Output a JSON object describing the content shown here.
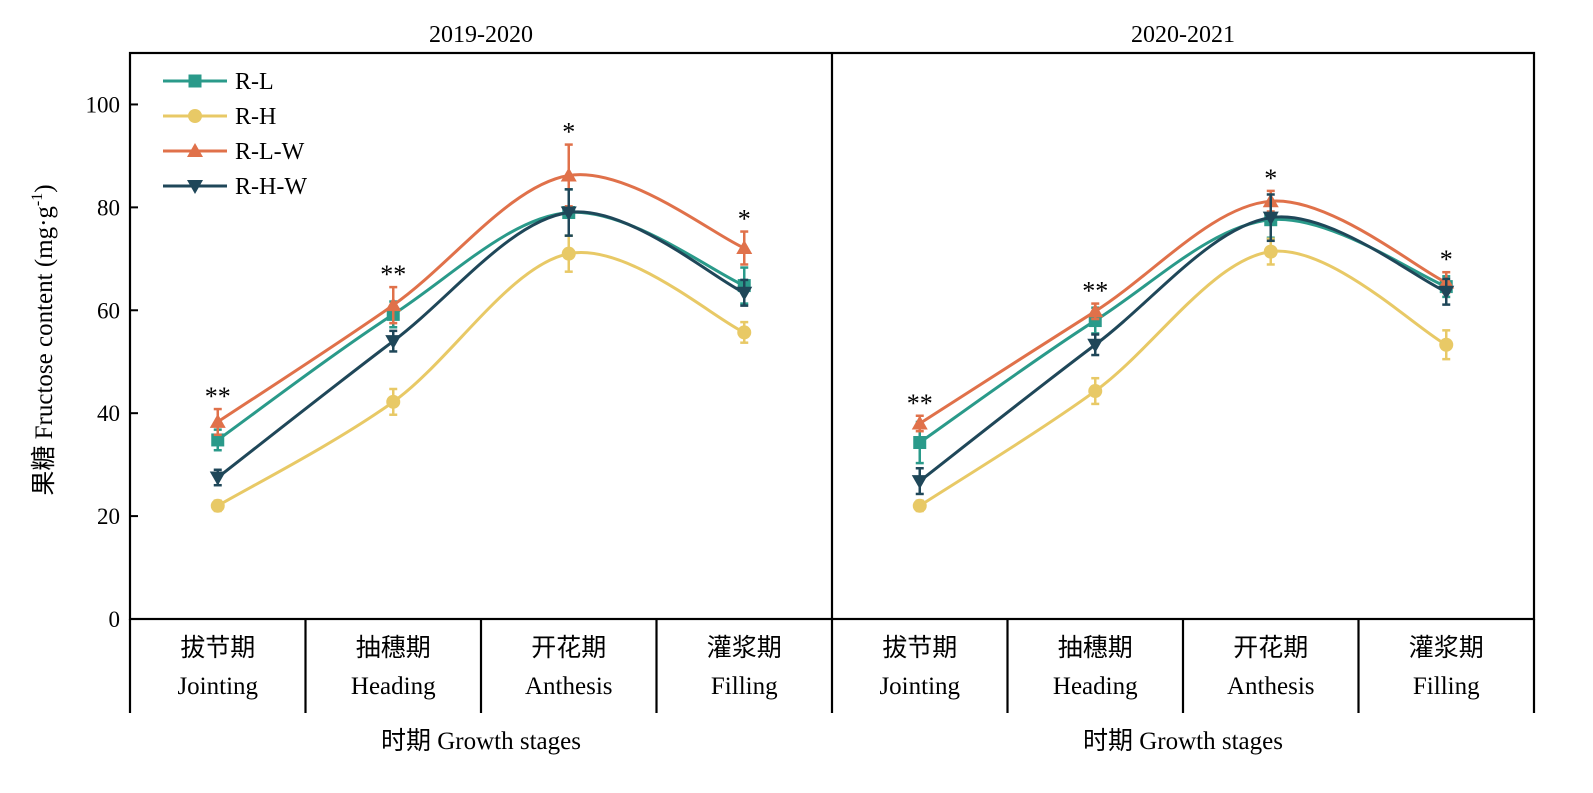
{
  "chart_data": {
    "type": "line",
    "ylabel": "果糖 Fructose content (mg·g",
    "ylabel_sup": "-1",
    "ylabel_end": ")",
    "ylim": [
      0,
      110
    ],
    "yticks": [
      0,
      20,
      40,
      60,
      80,
      100
    ],
    "xlabel": "时期 Growth stages",
    "categories_zh": [
      "拔节期",
      "抽穗期",
      "开花期",
      "灌浆期"
    ],
    "categories": [
      "Jointing",
      "Heading",
      "Anthesis",
      "Filling"
    ],
    "legend_position": "top-left",
    "grid": false,
    "series_style": [
      {
        "name": "R-L",
        "color": "#2a9a8a",
        "marker": "square"
      },
      {
        "name": "R-H",
        "color": "#e8c966",
        "marker": "circle"
      },
      {
        "name": "R-L-W",
        "color": "#e0714a",
        "marker": "triangle-up"
      },
      {
        "name": "R-H-W",
        "color": "#1f4759",
        "marker": "triangle-down"
      }
    ],
    "panels": [
      {
        "title": "2019-2020",
        "significance": [
          "**",
          "**",
          "*",
          "*"
        ],
        "series": [
          {
            "name": "R-L",
            "values": [
              34.8,
              59.2,
              79.0,
              64.8
            ],
            "errors": [
              2.0,
              2.5,
              4.5,
              3.5
            ]
          },
          {
            "name": "R-H",
            "values": [
              22.0,
              42.2,
              71.0,
              55.7
            ],
            "errors": [
              1.0,
              2.5,
              3.5,
              2.0
            ]
          },
          {
            "name": "R-L-W",
            "values": [
              38.3,
              61.0,
              86.2,
              72.1
            ],
            "errors": [
              2.5,
              3.5,
              6.0,
              3.2
            ]
          },
          {
            "name": "R-H-W",
            "values": [
              27.5,
              54.0,
              79.0,
              63.4
            ],
            "errors": [
              1.5,
              2.0,
              4.5,
              2.5
            ]
          }
        ]
      },
      {
        "title": "2020-2021",
        "significance": [
          "**",
          "**",
          "*",
          "*"
        ],
        "series": [
          {
            "name": "R-L",
            "values": [
              34.3,
              58.0,
              77.6,
              64.6
            ],
            "errors": [
              4.0,
              2.5,
              3.5,
              2.0
            ]
          },
          {
            "name": "R-H",
            "values": [
              22.0,
              44.3,
              71.4,
              53.3
            ],
            "errors": [
              1.0,
              2.5,
              2.5,
              2.8
            ]
          },
          {
            "name": "R-L-W",
            "values": [
              38.0,
              59.8,
              81.2,
              65.4
            ],
            "errors": [
              1.5,
              1.5,
              2.0,
              2.0
            ]
          },
          {
            "name": "R-H-W",
            "values": [
              26.8,
              53.3,
              78.0,
              63.6
            ],
            "errors": [
              2.5,
              2.0,
              4.5,
              2.5
            ]
          }
        ]
      }
    ]
  }
}
